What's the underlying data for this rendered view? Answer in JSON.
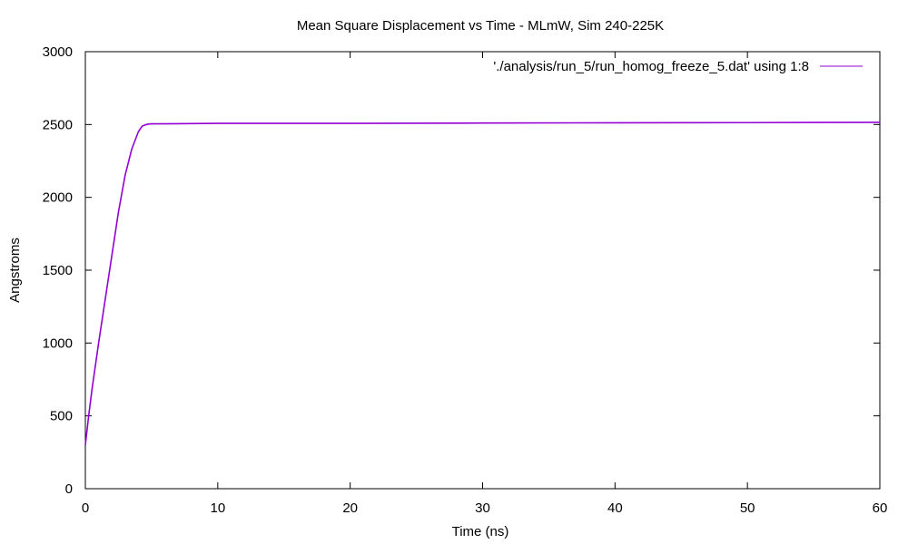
{
  "chart_data": {
    "type": "line",
    "title": "Mean Square Displacement vs Time - MLmW, Sim 240-225K",
    "xlabel": "Time (ns)",
    "ylabel": "Angstroms",
    "xlim": [
      0,
      60
    ],
    "ylim": [
      0,
      3000
    ],
    "xticks": [
      0,
      10,
      20,
      30,
      40,
      50,
      60
    ],
    "yticks": [
      0,
      500,
      1000,
      1500,
      2000,
      2500,
      3000
    ],
    "grid": false,
    "legend_position": "top-right",
    "series": [
      {
        "name": "'./analysis/run_5/run_homog_freeze_5.dat' using 1:8",
        "color": "#9400d3",
        "x": [
          0,
          0.25,
          0.5,
          1.0,
          1.5,
          2.0,
          2.5,
          3.0,
          3.5,
          4.0,
          4.3,
          4.6,
          4.8,
          5.0,
          6,
          10,
          20,
          30,
          40,
          50,
          60
        ],
        "y": [
          300,
          500,
          680,
          1000,
          1300,
          1600,
          1900,
          2150,
          2330,
          2450,
          2490,
          2500,
          2503,
          2505,
          2505,
          2508,
          2508,
          2510,
          2512,
          2513,
          2515
        ]
      }
    ]
  }
}
